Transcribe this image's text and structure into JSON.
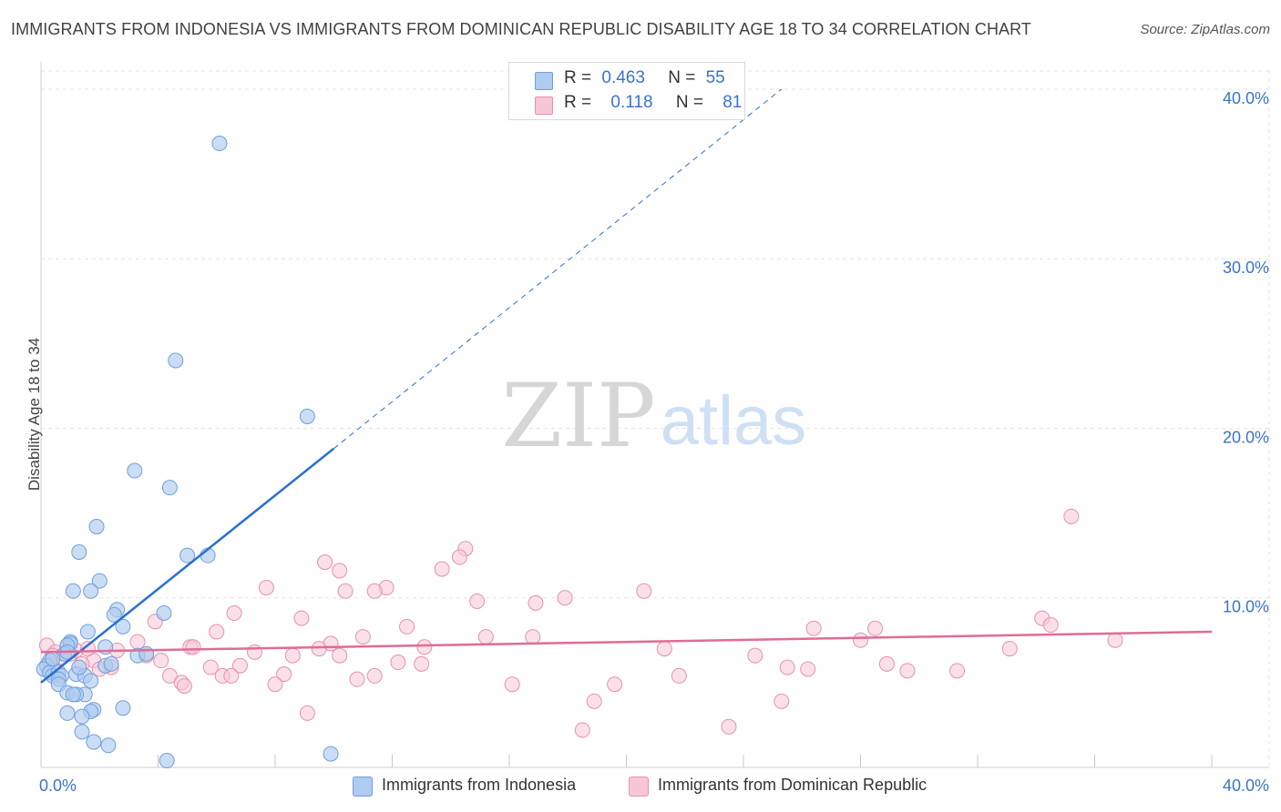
{
  "header": {
    "title": "IMMIGRANTS FROM INDONESIA VS IMMIGRANTS FROM DOMINICAN REPUBLIC DISABILITY AGE 18 TO 34 CORRELATION CHART",
    "source": "Source: ZipAtlas.com"
  },
  "watermark": {
    "zip": "ZIP",
    "atlas": "atlas"
  },
  "legend": {
    "r_label": "R =",
    "n_label": "N =",
    "series": [
      {
        "r": "0.463",
        "n": "55"
      },
      {
        "r": "0.118",
        "n": "81"
      }
    ]
  },
  "bottom_legend": {
    "items": [
      "Immigrants from Indonesia",
      "Immigrants from Dominican Republic"
    ]
  },
  "colors": {
    "indonesia_fill": "#aecbf0",
    "indonesia_stroke": "#6f9fdc",
    "indonesia_line": "#2a6fd1",
    "dominican_fill": "#f7c6d6",
    "dominican_stroke": "#e890ae",
    "dominican_line": "#e06b96",
    "axis_text": "#3a73c9",
    "grid": "#e3e3e3"
  },
  "chart_data": {
    "type": "scatter",
    "title": "IMMIGRANTS FROM INDONESIA VS IMMIGRANTS FROM DOMINICAN REPUBLIC DISABILITY AGE 18 TO 34 CORRELATION CHART",
    "xlabel": "",
    "ylabel": "Disability Age 18 to 34",
    "xlim": [
      0,
      40
    ],
    "ylim": [
      0,
      41.5
    ],
    "x_tick_labels": [
      "0.0%",
      "40.0%"
    ],
    "y_ticks": [
      10,
      20,
      30,
      40
    ],
    "y_tick_labels": [
      "10.0%",
      "20.0%",
      "30.0%",
      "40.0%"
    ],
    "series": [
      {
        "name": "Immigrants from Indonesia",
        "R": 0.463,
        "N": 55,
        "trend": {
          "x0": 0.0,
          "y0": 5.0,
          "x1": 10.0,
          "y1": 18.8,
          "dashed_to_x": 25.3,
          "dashed_to_y": 40.0
        },
        "points": [
          [
            6.1,
            36.8
          ],
          [
            4.6,
            24.0
          ],
          [
            9.1,
            20.7
          ],
          [
            3.2,
            17.5
          ],
          [
            4.4,
            16.5
          ],
          [
            1.9,
            14.2
          ],
          [
            1.3,
            12.7
          ],
          [
            5.0,
            12.5
          ],
          [
            5.7,
            12.5
          ],
          [
            2.0,
            11.0
          ],
          [
            1.1,
            10.4
          ],
          [
            1.7,
            10.4
          ],
          [
            2.6,
            9.3
          ],
          [
            2.5,
            9.0
          ],
          [
            4.2,
            9.1
          ],
          [
            2.8,
            8.3
          ],
          [
            1.6,
            8.0
          ],
          [
            1.0,
            7.4
          ],
          [
            1.0,
            7.3
          ],
          [
            0.9,
            7.2
          ],
          [
            3.3,
            6.6
          ],
          [
            2.2,
            6.0
          ],
          [
            0.3,
            6.3
          ],
          [
            0.2,
            6.0
          ],
          [
            0.1,
            5.8
          ],
          [
            0.3,
            5.6
          ],
          [
            0.4,
            5.4
          ],
          [
            0.6,
            5.6
          ],
          [
            0.7,
            5.4
          ],
          [
            1.2,
            5.5
          ],
          [
            1.5,
            5.4
          ],
          [
            0.6,
            5.2
          ],
          [
            0.6,
            4.9
          ],
          [
            1.7,
            5.1
          ],
          [
            0.9,
            4.4
          ],
          [
            1.5,
            4.3
          ],
          [
            1.2,
            4.3
          ],
          [
            1.1,
            4.3
          ],
          [
            2.8,
            3.5
          ],
          [
            1.8,
            3.4
          ],
          [
            1.7,
            3.3
          ],
          [
            0.9,
            3.2
          ],
          [
            1.4,
            3.0
          ],
          [
            1.4,
            2.1
          ],
          [
            1.8,
            1.5
          ],
          [
            2.3,
            1.3
          ],
          [
            4.3,
            0.4
          ],
          [
            9.9,
            0.8
          ],
          [
            0.8,
            6.7
          ],
          [
            0.4,
            6.4
          ],
          [
            3.6,
            6.7
          ],
          [
            2.4,
            6.1
          ],
          [
            1.3,
            5.9
          ],
          [
            0.9,
            6.8
          ],
          [
            2.2,
            7.1
          ]
        ]
      },
      {
        "name": "Immigrants from Dominican Republic",
        "R": 0.118,
        "N": 81,
        "trend": {
          "x0": 0.0,
          "y0": 6.8,
          "x1": 40.0,
          "y1": 8.0
        },
        "points": [
          [
            35.2,
            14.8
          ],
          [
            14.5,
            12.9
          ],
          [
            14.3,
            12.4
          ],
          [
            9.7,
            12.1
          ],
          [
            13.7,
            11.7
          ],
          [
            10.2,
            11.6
          ],
          [
            7.7,
            10.6
          ],
          [
            11.8,
            10.6
          ],
          [
            10.4,
            10.4
          ],
          [
            11.4,
            10.4
          ],
          [
            20.6,
            10.4
          ],
          [
            17.9,
            10.0
          ],
          [
            14.9,
            9.8
          ],
          [
            16.9,
            9.7
          ],
          [
            6.6,
            9.1
          ],
          [
            8.9,
            8.8
          ],
          [
            34.2,
            8.8
          ],
          [
            3.9,
            8.6
          ],
          [
            34.5,
            8.4
          ],
          [
            12.5,
            8.3
          ],
          [
            26.4,
            8.2
          ],
          [
            28.5,
            8.2
          ],
          [
            6.0,
            8.0
          ],
          [
            11.0,
            7.7
          ],
          [
            15.2,
            7.7
          ],
          [
            16.8,
            7.7
          ],
          [
            28.0,
            7.5
          ],
          [
            36.7,
            7.5
          ],
          [
            3.3,
            7.4
          ],
          [
            9.9,
            7.3
          ],
          [
            5.1,
            7.1
          ],
          [
            5.2,
            7.1
          ],
          [
            13.1,
            7.1
          ],
          [
            9.5,
            7.0
          ],
          [
            21.3,
            7.0
          ],
          [
            33.1,
            7.0
          ],
          [
            7.3,
            6.8
          ],
          [
            8.6,
            6.6
          ],
          [
            3.6,
            6.6
          ],
          [
            10.2,
            6.6
          ],
          [
            24.4,
            6.6
          ],
          [
            4.1,
            6.3
          ],
          [
            12.2,
            6.2
          ],
          [
            13.0,
            6.1
          ],
          [
            28.9,
            6.1
          ],
          [
            6.8,
            6.0
          ],
          [
            5.8,
            5.9
          ],
          [
            2.4,
            5.9
          ],
          [
            25.5,
            5.9
          ],
          [
            26.2,
            5.8
          ],
          [
            29.6,
            5.7
          ],
          [
            31.3,
            5.7
          ],
          [
            8.3,
            5.5
          ],
          [
            4.4,
            5.4
          ],
          [
            6.2,
            5.4
          ],
          [
            6.5,
            5.4
          ],
          [
            11.4,
            5.4
          ],
          [
            21.8,
            5.4
          ],
          [
            10.8,
            5.2
          ],
          [
            4.8,
            5.0
          ],
          [
            8.0,
            4.9
          ],
          [
            16.1,
            4.9
          ],
          [
            19.6,
            4.9
          ],
          [
            4.9,
            4.8
          ],
          [
            18.9,
            3.9
          ],
          [
            25.3,
            3.9
          ],
          [
            9.1,
            3.2
          ],
          [
            18.5,
            2.2
          ],
          [
            23.5,
            2.4
          ],
          [
            0.2,
            7.2
          ],
          [
            0.5,
            6.8
          ],
          [
            1.0,
            6.7
          ],
          [
            1.2,
            6.9
          ],
          [
            0.7,
            6.5
          ],
          [
            1.8,
            6.3
          ],
          [
            1.4,
            6.1
          ],
          [
            2.0,
            5.8
          ],
          [
            0.4,
            6.6
          ],
          [
            2.6,
            6.9
          ],
          [
            1.6,
            7.0
          ],
          [
            0.9,
            7.1
          ]
        ]
      }
    ]
  }
}
